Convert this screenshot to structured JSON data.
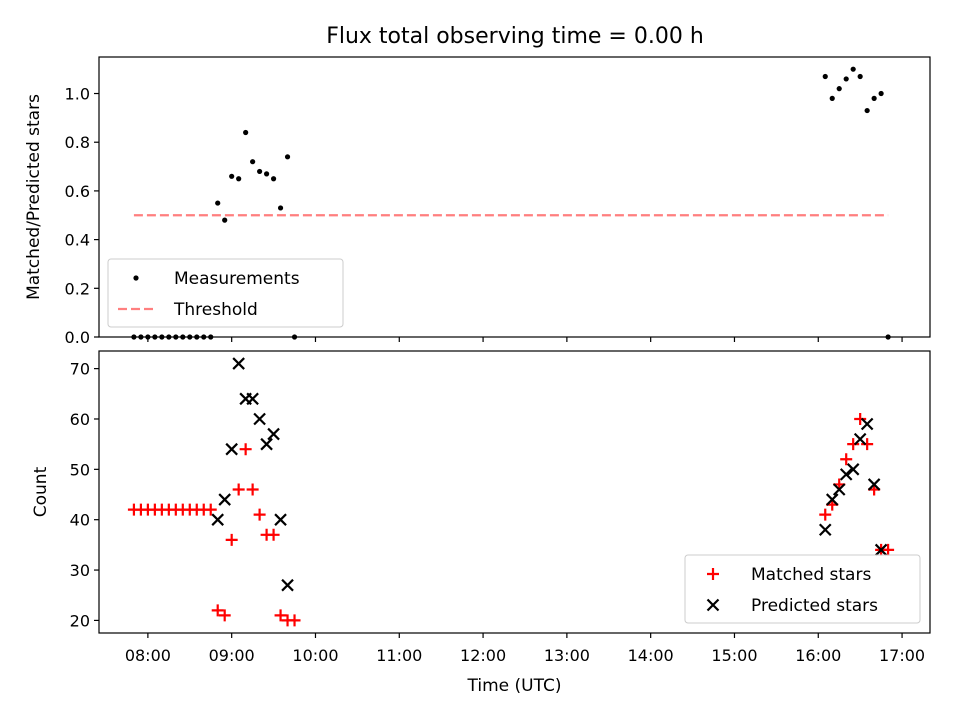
{
  "figure": {
    "title": "Flux total observing time = 0.00 h"
  },
  "chart_data": [
    {
      "type": "scatter",
      "ylabel": "Matched/Predicted stars",
      "xlabel": "",
      "xlim": [
        "07:25",
        "17:20"
      ],
      "ylim": [
        0,
        1.15
      ],
      "yticks": [
        0.0,
        0.2,
        0.4,
        0.6,
        0.8,
        1.0
      ],
      "ytick_labels": [
        "0.0",
        "0.2",
        "0.4",
        "0.6",
        "0.8",
        "1.0"
      ],
      "legend_placement": "lower-left",
      "series": [
        {
          "name": "Measurements",
          "kind": "scatter",
          "color": "#000000",
          "marker": "dot",
          "points": [
            [
              "07:50",
              0.0
            ],
            [
              "07:55",
              0.0
            ],
            [
              "08:00",
              0.0
            ],
            [
              "08:05",
              0.0
            ],
            [
              "08:10",
              0.0
            ],
            [
              "08:15",
              0.0
            ],
            [
              "08:20",
              0.0
            ],
            [
              "08:25",
              0.0
            ],
            [
              "08:30",
              0.0
            ],
            [
              "08:35",
              0.0
            ],
            [
              "08:40",
              0.0
            ],
            [
              "08:45",
              0.0
            ],
            [
              "08:50",
              0.55
            ],
            [
              "08:55",
              0.48
            ],
            [
              "09:00",
              0.66
            ],
            [
              "09:05",
              0.65
            ],
            [
              "09:10",
              0.84
            ],
            [
              "09:15",
              0.72
            ],
            [
              "09:20",
              0.68
            ],
            [
              "09:25",
              0.67
            ],
            [
              "09:30",
              0.65
            ],
            [
              "09:35",
              0.53
            ],
            [
              "09:40",
              0.74
            ],
            [
              "09:45",
              0.0
            ],
            [
              "16:05",
              1.07
            ],
            [
              "16:10",
              0.98
            ],
            [
              "16:15",
              1.02
            ],
            [
              "16:20",
              1.06
            ],
            [
              "16:25",
              1.1
            ],
            [
              "16:30",
              1.07
            ],
            [
              "16:35",
              0.93
            ],
            [
              "16:40",
              0.98
            ],
            [
              "16:45",
              1.0
            ],
            [
              "16:50",
              0.0
            ]
          ]
        },
        {
          "name": "Threshold",
          "kind": "line",
          "color": "#ff7f7f",
          "dashed": true,
          "points": [
            [
              "07:50",
              0.5
            ],
            [
              "16:50",
              0.5
            ]
          ]
        }
      ]
    },
    {
      "type": "scatter",
      "ylabel": "Count",
      "xlabel": "Time (UTC)",
      "xlim": [
        "07:25",
        "17:20"
      ],
      "ylim": [
        17.5,
        73.5
      ],
      "yticks": [
        20,
        30,
        40,
        50,
        60,
        70
      ],
      "ytick_labels": [
        "20",
        "30",
        "40",
        "50",
        "60",
        "70"
      ],
      "xticks": [
        "08:00",
        "09:00",
        "10:00",
        "11:00",
        "12:00",
        "13:00",
        "14:00",
        "15:00",
        "16:00",
        "17:00"
      ],
      "legend_placement": "lower-right",
      "series": [
        {
          "name": "Matched stars",
          "kind": "scatter",
          "color": "#ff0000",
          "marker": "plus",
          "points": [
            [
              "07:50",
              42
            ],
            [
              "07:55",
              42
            ],
            [
              "08:00",
              42
            ],
            [
              "08:05",
              42
            ],
            [
              "08:10",
              42
            ],
            [
              "08:15",
              42
            ],
            [
              "08:20",
              42
            ],
            [
              "08:25",
              42
            ],
            [
              "08:30",
              42
            ],
            [
              "08:35",
              42
            ],
            [
              "08:40",
              42
            ],
            [
              "08:45",
              42
            ],
            [
              "08:50",
              22
            ],
            [
              "08:55",
              21
            ],
            [
              "09:00",
              36
            ],
            [
              "09:05",
              46
            ],
            [
              "09:10",
              54
            ],
            [
              "09:15",
              46
            ],
            [
              "09:20",
              41
            ],
            [
              "09:25",
              37
            ],
            [
              "09:30",
              37
            ],
            [
              "09:35",
              21
            ],
            [
              "09:40",
              20
            ],
            [
              "09:45",
              20
            ],
            [
              "16:05",
              41
            ],
            [
              "16:10",
              43
            ],
            [
              "16:15",
              47
            ],
            [
              "16:20",
              52
            ],
            [
              "16:25",
              55
            ],
            [
              "16:30",
              60
            ],
            [
              "16:35",
              55
            ],
            [
              "16:40",
              46
            ],
            [
              "16:45",
              34
            ],
            [
              "16:50",
              34
            ]
          ]
        },
        {
          "name": "Predicted stars",
          "kind": "scatter",
          "color": "#000000",
          "marker": "x",
          "points": [
            [
              "08:50",
              40
            ],
            [
              "08:55",
              44
            ],
            [
              "09:00",
              54
            ],
            [
              "09:05",
              71
            ],
            [
              "09:10",
              64
            ],
            [
              "09:15",
              64
            ],
            [
              "09:20",
              60
            ],
            [
              "09:25",
              55
            ],
            [
              "09:30",
              57
            ],
            [
              "09:35",
              40
            ],
            [
              "09:40",
              27
            ],
            [
              "16:05",
              38
            ],
            [
              "16:10",
              44
            ],
            [
              "16:15",
              46
            ],
            [
              "16:20",
              49
            ],
            [
              "16:25",
              50
            ],
            [
              "16:30",
              56
            ],
            [
              "16:35",
              59
            ],
            [
              "16:40",
              47
            ],
            [
              "16:45",
              34
            ]
          ]
        }
      ]
    }
  ]
}
